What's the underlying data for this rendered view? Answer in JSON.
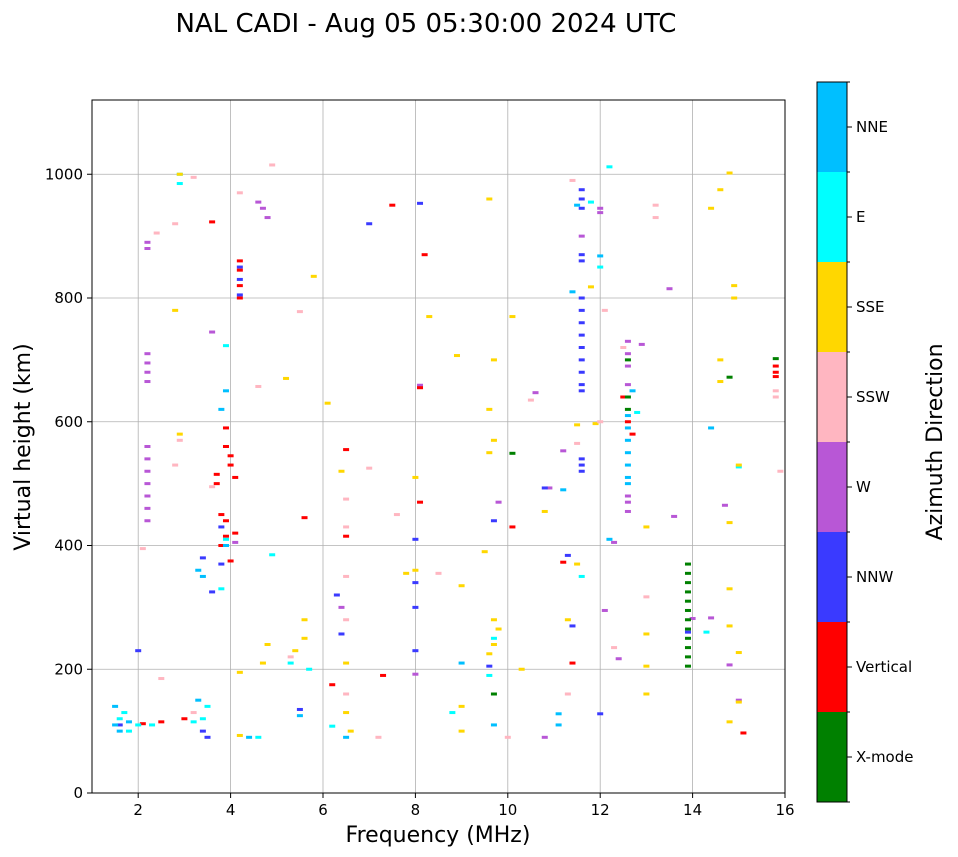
{
  "chart_data": {
    "type": "scatter",
    "title": "NAL CADI - Aug 05 05:30:00 2024 UTC",
    "xlabel": "Frequency (MHz)",
    "ylabel": "Virtual height (km)",
    "xlim": [
      1,
      16
    ],
    "ylim": [
      0,
      1120
    ],
    "xticks": [
      2,
      4,
      6,
      8,
      10,
      12,
      14,
      16
    ],
    "yticks": [
      0,
      200,
      400,
      600,
      800,
      1000
    ],
    "grid": true,
    "colorbar": {
      "label": "Azimuth Direction",
      "categories": [
        {
          "name": "X-mode",
          "color": "#008000"
        },
        {
          "name": "Vertical",
          "color": "#ff0000"
        },
        {
          "name": "NNW",
          "color": "#3a3aff"
        },
        {
          "name": "W",
          "color": "#b857d6"
        },
        {
          "name": "SSW",
          "color": "#ffb6c1"
        },
        {
          "name": "SSE",
          "color": "#ffd700"
        },
        {
          "name": "E",
          "color": "#00ffff"
        },
        {
          "name": "NNE",
          "color": "#00bfff"
        }
      ]
    },
    "series": [
      {
        "name": "W",
        "points": [
          [
            2.2,
            440
          ],
          [
            2.2,
            460
          ],
          [
            2.2,
            480
          ],
          [
            2.2,
            500
          ],
          [
            2.2,
            520
          ],
          [
            2.2,
            540
          ],
          [
            2.2,
            560
          ],
          [
            2.2,
            665
          ],
          [
            2.2,
            680
          ],
          [
            2.2,
            695
          ],
          [
            2.2,
            710
          ],
          [
            2.2,
            880
          ],
          [
            2.2,
            890
          ],
          [
            4.8,
            930
          ],
          [
            4.7,
            945
          ],
          [
            12.6,
            455
          ],
          [
            12.6,
            470
          ],
          [
            12.6,
            480
          ],
          [
            12.6,
            660
          ],
          [
            12.6,
            690
          ],
          [
            12.6,
            710
          ],
          [
            12.6,
            730
          ],
          [
            12.9,
            725
          ],
          [
            14.0,
            282
          ],
          [
            14.4,
            283
          ],
          [
            13.6,
            447
          ],
          [
            14.7,
            465
          ],
          [
            13.5,
            815
          ],
          [
            4.1,
            405
          ],
          [
            9.8,
            470
          ],
          [
            10.8,
            90
          ],
          [
            10.9,
            493
          ],
          [
            11.2,
            553
          ],
          [
            8.0,
            192
          ],
          [
            8.1,
            659
          ],
          [
            6.4,
            300
          ],
          [
            10.6,
            647
          ],
          [
            14.8,
            207
          ],
          [
            15.0,
            150
          ],
          [
            12.1,
            295
          ],
          [
            12.3,
            405
          ],
          [
            12.4,
            217
          ],
          [
            12.0,
            938
          ],
          [
            12.0,
            945
          ],
          [
            11.6,
            900
          ],
          [
            3.6,
            745
          ],
          [
            4.6,
            955
          ]
        ]
      },
      {
        "name": "NNW",
        "points": [
          [
            11.6,
            945
          ],
          [
            11.6,
            960
          ],
          [
            11.6,
            975
          ],
          [
            11.6,
            860
          ],
          [
            11.6,
            870
          ],
          [
            11.6,
            800
          ],
          [
            11.6,
            780
          ],
          [
            11.6,
            760
          ],
          [
            11.6,
            740
          ],
          [
            11.6,
            720
          ],
          [
            11.6,
            700
          ],
          [
            11.6,
            680
          ],
          [
            11.6,
            660
          ],
          [
            11.6,
            650
          ],
          [
            11.6,
            540
          ],
          [
            11.6,
            530
          ],
          [
            11.6,
            520
          ],
          [
            12.0,
            128
          ],
          [
            6.3,
            320
          ],
          [
            6.4,
            257
          ],
          [
            8.0,
            230
          ],
          [
            8.0,
            300
          ],
          [
            8.0,
            340
          ],
          [
            8.0,
            410
          ],
          [
            8.1,
            953
          ],
          [
            9.7,
            440
          ],
          [
            11.3,
            384
          ],
          [
            11.4,
            270
          ],
          [
            3.4,
            380
          ],
          [
            3.6,
            325
          ],
          [
            2.0,
            230
          ],
          [
            1.6,
            110
          ],
          [
            4.2,
            850
          ],
          [
            4.2,
            830
          ],
          [
            4.2,
            805
          ],
          [
            3.8,
            370
          ],
          [
            3.9,
            400
          ],
          [
            3.8,
            430
          ],
          [
            13.9,
            260
          ],
          [
            3.4,
            100
          ],
          [
            3.5,
            90
          ],
          [
            9.6,
            205
          ],
          [
            10.8,
            493
          ],
          [
            5.5,
            135
          ],
          [
            7.0,
            920
          ]
        ]
      },
      {
        "name": "Vertical",
        "points": [
          [
            4.2,
            860
          ],
          [
            4.2,
            845
          ],
          [
            4.2,
            820
          ],
          [
            4.2,
            800
          ],
          [
            3.9,
            590
          ],
          [
            3.9,
            560
          ],
          [
            4.0,
            545
          ],
          [
            4.0,
            530
          ],
          [
            3.8,
            450
          ],
          [
            3.9,
            440
          ],
          [
            4.1,
            420
          ],
          [
            3.9,
            415
          ],
          [
            3.8,
            400
          ],
          [
            4.0,
            375
          ],
          [
            3.7,
            500
          ],
          [
            3.7,
            515
          ],
          [
            6.5,
            555
          ],
          [
            6.5,
            415
          ],
          [
            8.1,
            655
          ],
          [
            8.2,
            870
          ],
          [
            8.1,
            470
          ],
          [
            7.5,
            950
          ],
          [
            11.4,
            210
          ],
          [
            11.2,
            373
          ],
          [
            10.1,
            430
          ],
          [
            15.1,
            97
          ],
          [
            15.8,
            690
          ],
          [
            15.8,
            680
          ],
          [
            15.8,
            673
          ],
          [
            12.6,
            600
          ],
          [
            12.7,
            580
          ],
          [
            12.5,
            640
          ],
          [
            2.5,
            115
          ],
          [
            2.1,
            112
          ],
          [
            3.0,
            120
          ],
          [
            5.6,
            445
          ],
          [
            6.2,
            175
          ],
          [
            3.6,
            923
          ],
          [
            4.1,
            510
          ],
          [
            7.3,
            190
          ]
        ]
      },
      {
        "name": "X-mode",
        "points": [
          [
            13.9,
            370
          ],
          [
            13.9,
            355
          ],
          [
            13.9,
            340
          ],
          [
            13.9,
            325
          ],
          [
            13.9,
            310
          ],
          [
            13.9,
            295
          ],
          [
            13.9,
            280
          ],
          [
            13.9,
            265
          ],
          [
            13.9,
            250
          ],
          [
            13.9,
            235
          ],
          [
            13.9,
            220
          ],
          [
            13.9,
            205
          ],
          [
            12.6,
            700
          ],
          [
            12.6,
            640
          ],
          [
            12.6,
            620
          ],
          [
            14.8,
            672
          ],
          [
            15.8,
            702
          ],
          [
            10.1,
            549
          ],
          [
            9.7,
            160
          ]
        ]
      },
      {
        "name": "NNE",
        "points": [
          [
            12.6,
            590
          ],
          [
            12.6,
            570
          ],
          [
            12.6,
            550
          ],
          [
            12.6,
            530
          ],
          [
            12.6,
            510
          ],
          [
            12.6,
            500
          ],
          [
            12.6,
            610
          ],
          [
            12.7,
            650
          ],
          [
            11.5,
            950
          ],
          [
            11.4,
            810
          ],
          [
            11.2,
            490
          ],
          [
            12.0,
            868
          ],
          [
            11.1,
            128
          ],
          [
            11.1,
            110
          ],
          [
            9.7,
            110
          ],
          [
            1.5,
            140
          ],
          [
            1.5,
            110
          ],
          [
            1.6,
            100
          ],
          [
            1.8,
            115
          ],
          [
            3.4,
            350
          ],
          [
            3.3,
            360
          ],
          [
            3.9,
            400
          ],
          [
            3.8,
            620
          ],
          [
            3.9,
            650
          ],
          [
            4.4,
            90
          ],
          [
            9.0,
            210
          ],
          [
            14.4,
            590
          ],
          [
            12.2,
            410
          ],
          [
            6.5,
            90
          ],
          [
            5.5,
            125
          ],
          [
            3.3,
            150
          ]
        ]
      },
      {
        "name": "E",
        "points": [
          [
            1.6,
            120
          ],
          [
            1.7,
            130
          ],
          [
            2.0,
            110
          ],
          [
            2.3,
            110
          ],
          [
            3.2,
            115
          ],
          [
            3.4,
            120
          ],
          [
            3.5,
            140
          ],
          [
            3.8,
            330
          ],
          [
            3.9,
            410
          ],
          [
            3.9,
            723
          ],
          [
            4.9,
            385
          ],
          [
            5.3,
            210
          ],
          [
            5.7,
            200
          ],
          [
            6.2,
            108
          ],
          [
            9.7,
            250
          ],
          [
            11.8,
            955
          ],
          [
            12.0,
            850
          ],
          [
            12.8,
            615
          ],
          [
            15.0,
            527
          ],
          [
            11.6,
            350
          ],
          [
            12.2,
            1012
          ],
          [
            1.8,
            100
          ],
          [
            2.9,
            1000
          ],
          [
            2.9,
            985
          ],
          [
            4.6,
            90
          ],
          [
            9.6,
            190
          ],
          [
            8.8,
            130
          ],
          [
            14.3,
            260
          ]
        ]
      },
      {
        "name": "SSE",
        "points": [
          [
            2.8,
            780
          ],
          [
            2.9,
            1000
          ],
          [
            5.2,
            670
          ],
          [
            5.8,
            835
          ],
          [
            6.1,
            630
          ],
          [
            6.4,
            520
          ],
          [
            6.5,
            210
          ],
          [
            6.5,
            130
          ],
          [
            8.0,
            510
          ],
          [
            8.0,
            360
          ],
          [
            8.9,
            707
          ],
          [
            9.0,
            335
          ],
          [
            9.6,
            960
          ],
          [
            9.7,
            700
          ],
          [
            9.6,
            620
          ],
          [
            9.7,
            570
          ],
          [
            9.6,
            550
          ],
          [
            9.5,
            390
          ],
          [
            9.7,
            280
          ],
          [
            9.8,
            265
          ],
          [
            9.7,
            240
          ],
          [
            9.6,
            225
          ],
          [
            9.0,
            140
          ],
          [
            9.0,
            100
          ],
          [
            10.1,
            770
          ],
          [
            11.8,
            818
          ],
          [
            11.9,
            597
          ],
          [
            11.5,
            595
          ],
          [
            13.0,
            430
          ],
          [
            13.0,
            257
          ],
          [
            13.0,
            205
          ],
          [
            13.0,
            160
          ],
          [
            14.6,
            975
          ],
          [
            14.8,
            1002
          ],
          [
            14.4,
            945
          ],
          [
            14.9,
            820
          ],
          [
            14.9,
            800
          ],
          [
            14.6,
            700
          ],
          [
            14.6,
            665
          ],
          [
            14.8,
            437
          ],
          [
            14.8,
            330
          ],
          [
            14.8,
            270
          ],
          [
            15.0,
            227
          ],
          [
            14.8,
            115
          ],
          [
            15.0,
            147
          ],
          [
            15.0,
            530
          ],
          [
            5.4,
            230
          ],
          [
            5.6,
            250
          ],
          [
            5.6,
            280
          ],
          [
            4.2,
            93
          ],
          [
            4.2,
            195
          ],
          [
            4.8,
            240
          ],
          [
            4.7,
            210
          ],
          [
            2.9,
            580
          ],
          [
            8.3,
            770
          ],
          [
            10.8,
            455
          ],
          [
            11.5,
            370
          ],
          [
            11.3,
            280
          ],
          [
            10.3,
            200
          ],
          [
            7.8,
            355
          ],
          [
            6.6,
            100
          ]
        ]
      },
      {
        "name": "SSW",
        "points": [
          [
            2.1,
            395
          ],
          [
            2.8,
            530
          ],
          [
            3.2,
            995
          ],
          [
            3.6,
            495
          ],
          [
            4.2,
            970
          ],
          [
            4.9,
            1015
          ],
          [
            5.5,
            778
          ],
          [
            6.5,
            475
          ],
          [
            6.5,
            430
          ],
          [
            6.5,
            350
          ],
          [
            6.5,
            160
          ],
          [
            7.0,
            525
          ],
          [
            7.6,
            450
          ],
          [
            8.5,
            355
          ],
          [
            10.0,
            90
          ],
          [
            11.5,
            565
          ],
          [
            11.3,
            160
          ],
          [
            11.4,
            990
          ],
          [
            12.0,
            600
          ],
          [
            12.1,
            780
          ],
          [
            12.3,
            235
          ],
          [
            12.5,
            720
          ],
          [
            13.2,
            930
          ],
          [
            13.2,
            950
          ],
          [
            13.0,
            317
          ],
          [
            15.9,
            520
          ],
          [
            15.8,
            650
          ],
          [
            15.8,
            640
          ],
          [
            5.3,
            220
          ],
          [
            6.5,
            280
          ],
          [
            7.2,
            90
          ],
          [
            2.8,
            920
          ],
          [
            2.4,
            905
          ],
          [
            2.5,
            185
          ],
          [
            4.6,
            657
          ],
          [
            3.2,
            130
          ],
          [
            2.9,
            570
          ],
          [
            10.5,
            635
          ]
        ]
      }
    ]
  }
}
